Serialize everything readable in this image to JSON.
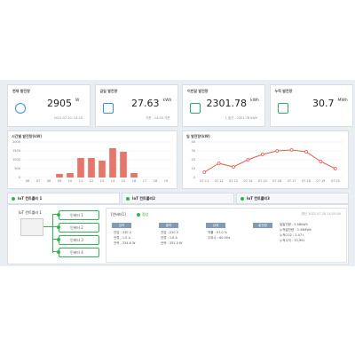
{
  "stat_cards": [
    {
      "title": "현재 발전량",
      "value": "2905",
      "unit": "W",
      "note": "2022.07.20. 14:20"
    },
    {
      "title": "금일 발전량",
      "value": "27.63",
      "unit": "kWh",
      "note": "기준 : 14:20 기준"
    },
    {
      "title": "이번달 발전량",
      "value": "2301.78",
      "unit": "kWh",
      "note": "1 일간 : 2301.78 kWh"
    },
    {
      "title": "누적 발전량",
      "value": "30.7",
      "unit": "MWh",
      "note": ""
    }
  ],
  "hourly_chart": {
    "type": "bar",
    "title": "시간별 발전량(kW)",
    "categories": [
      "06",
      "07",
      "08",
      "09",
      "10",
      "11",
      "12",
      "13",
      "14",
      "15",
      "16",
      "17",
      "18",
      "19"
    ],
    "values": [
      0,
      0,
      0,
      200,
      250,
      1100,
      1100,
      950,
      1650,
      1450,
      250,
      0,
      0,
      0
    ],
    "color": "#e8756a",
    "ylim": [
      0,
      2000
    ],
    "yticks": [
      0,
      500,
      1000,
      1500,
      2000
    ],
    "grid": true
  },
  "daily_chart": {
    "type": "line",
    "title": "일 발전량(kW)",
    "categories": [
      "07.11",
      "07.12",
      "07.13",
      "07.14",
      "07.15",
      "07.16",
      "07.17",
      "07.18",
      "07.19",
      "07.20"
    ],
    "values": [
      6,
      16,
      12,
      20,
      26,
      30,
      31,
      29,
      18,
      10
    ],
    "color": "#e05a4f",
    "ylim": [
      0,
      40
    ],
    "yticks": [
      0,
      10,
      20,
      30,
      40
    ],
    "grid": true
  },
  "tabs": [
    "IoT 컨트롤러 1",
    "IoT 컨트롤러2",
    "IoT 컨트롤러3"
  ],
  "device": {
    "name": "IoT 컨트롤러 1",
    "inverters": [
      "인버터 1",
      "인버터 2",
      "인버터 3",
      "인버터 4"
    ]
  },
  "detail": {
    "name": "[인버터1]",
    "status": "정상",
    "updated": "갱신 2022.07.20 14:20:00",
    "sections": [
      {
        "title": "입력",
        "lines": [
          "전압 : 330 V",
          "전류 : 1.0 A",
          "전력 : 334.6 W"
        ]
      },
      {
        "title": "출력",
        "lines": [
          "전압 : 220 V",
          "전류 : 1.6 A",
          "전력 : 352.0 W"
        ]
      },
      {
        "title": "상태",
        "lines": [
          "역률 : 97.0 %",
          "주파수 : 60.0Hz"
        ]
      },
      {
        "title": "발전량",
        "lines": [
          "일발전량 : 3.58kWh",
          "누적발전량 : 3.39MWh",
          "누적CO2 : 2.47 t",
          "누적수익 : 33,991"
        ]
      }
    ]
  }
}
